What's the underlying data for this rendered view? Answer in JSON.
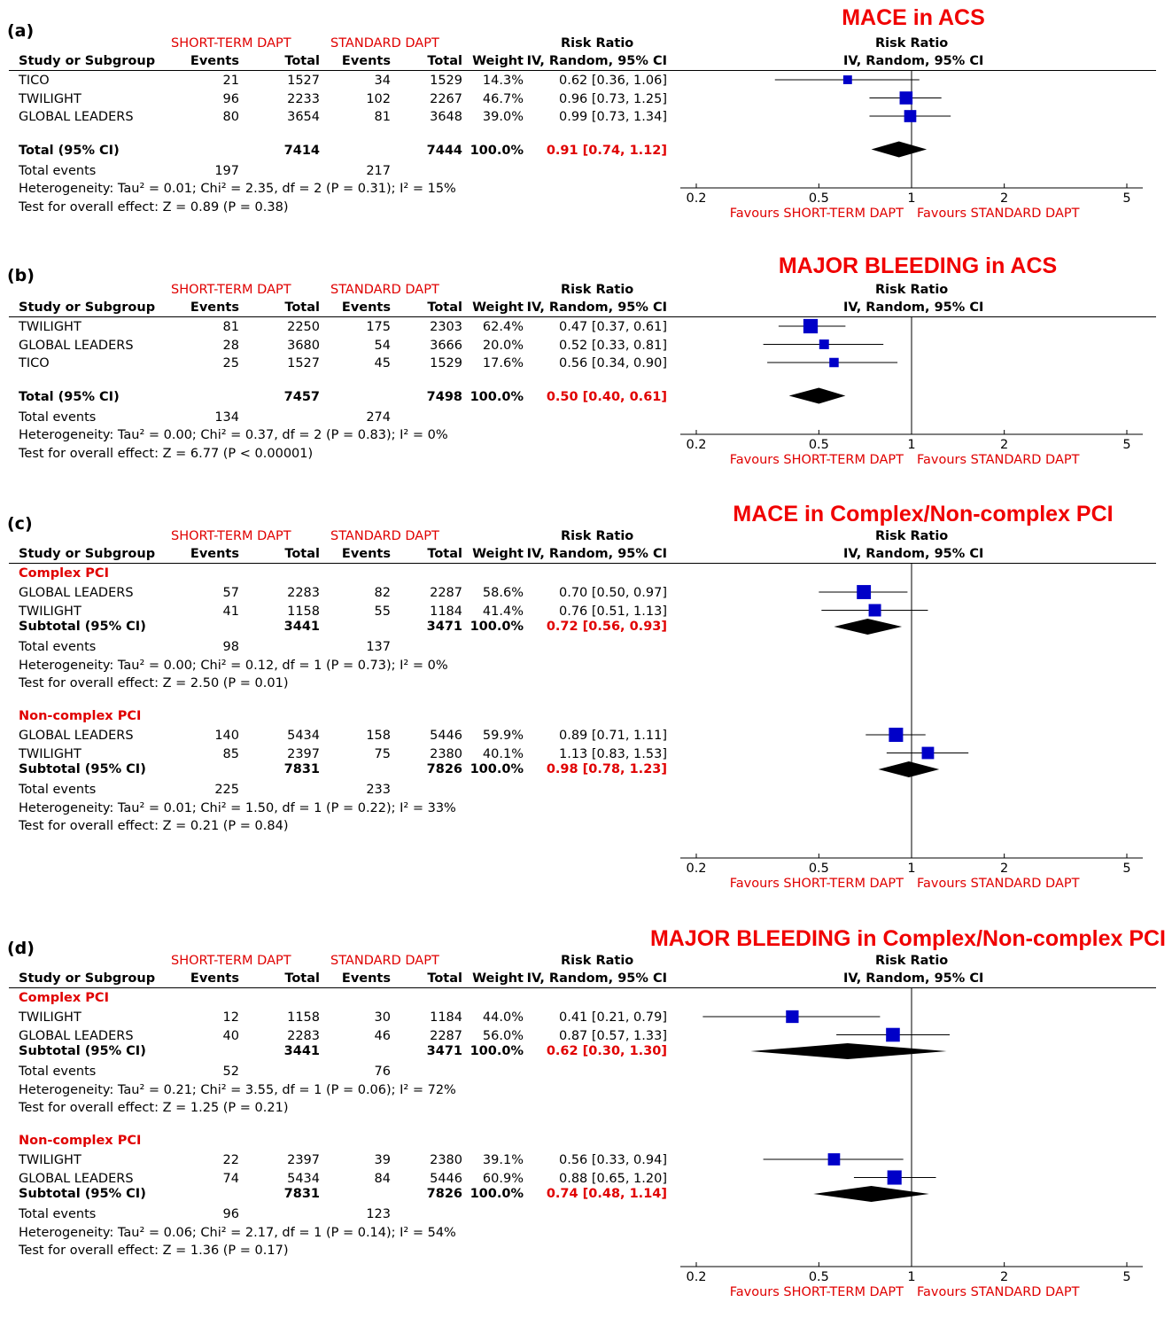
{
  "labels": {
    "group1": "SHORT-TERM DAPT",
    "group2": "STANDARD DAPT",
    "study_col": "Study or Subgroup",
    "events": "Events",
    "total": "Total",
    "weight": "Weight",
    "rr1": "Risk Ratio",
    "rr2": "IV, Random, 95% CI",
    "favours_left": "Favours SHORT-TERM DAPT",
    "favours_right": "Favours STANDARD DAPT",
    "total_events": "Total events"
  },
  "axis_ticks": [
    "0.2",
    "0.5",
    "1",
    "2",
    "5"
  ],
  "chart_data": [
    {
      "type": "forest",
      "letter": "(a)",
      "title": "MACE in ACS",
      "x_scale": "log",
      "xlim": [
        0.2,
        5
      ],
      "null_line": 1,
      "groups": [
        {
          "name": "",
          "studies": [
            {
              "name": "TICO",
              "e1": "21",
              "n1": "1527",
              "e2": "34",
              "n2": "1529",
              "weight": "14.3%",
              "ci": "0.62 [0.36, 1.06]",
              "rr": 0.62,
              "lo": 0.36,
              "hi": 1.06,
              "w": 14.3
            },
            {
              "name": "TWILIGHT",
              "e1": "96",
              "n1": "2233",
              "e2": "102",
              "n2": "2267",
              "weight": "46.7%",
              "ci": "0.96 [0.73, 1.25]",
              "rr": 0.96,
              "lo": 0.73,
              "hi": 1.25,
              "w": 46.7
            },
            {
              "name": "GLOBAL LEADERS",
              "e1": "80",
              "n1": "3654",
              "e2": "81",
              "n2": "3648",
              "weight": "39.0%",
              "ci": "0.99 [0.73, 1.34]",
              "rr": 0.99,
              "lo": 0.73,
              "hi": 1.34,
              "w": 39.0
            }
          ],
          "pooled": {
            "label": "Total (95% CI)",
            "n1": "7414",
            "n2": "7444",
            "weight": "100.0%",
            "ci": "0.91 [0.74, 1.12]",
            "rr": 0.91,
            "lo": 0.74,
            "hi": 1.12
          },
          "total_events1": "197",
          "total_events2": "217",
          "het": "Heterogeneity: Tau² = 0.01; Chi² = 2.35, df = 2 (P = 0.31); I² = 15%",
          "overall": "Test for overall effect: Z = 0.89 (P = 0.38)"
        }
      ]
    },
    {
      "type": "forest",
      "letter": "(b)",
      "title": "MAJOR BLEEDING in ACS",
      "x_scale": "log",
      "xlim": [
        0.2,
        5
      ],
      "null_line": 1,
      "groups": [
        {
          "name": "",
          "studies": [
            {
              "name": "TWILIGHT",
              "e1": "81",
              "n1": "2250",
              "e2": "175",
              "n2": "2303",
              "weight": "62.4%",
              "ci": "0.47 [0.37, 0.61]",
              "rr": 0.47,
              "lo": 0.37,
              "hi": 0.61,
              "w": 62.4
            },
            {
              "name": "GLOBAL LEADERS",
              "e1": "28",
              "n1": "3680",
              "e2": "54",
              "n2": "3666",
              "weight": "20.0%",
              "ci": "0.52 [0.33, 0.81]",
              "rr": 0.52,
              "lo": 0.33,
              "hi": 0.81,
              "w": 20.0
            },
            {
              "name": "TICO",
              "e1": "25",
              "n1": "1527",
              "e2": "45",
              "n2": "1529",
              "weight": "17.6%",
              "ci": "0.56 [0.34, 0.90]",
              "rr": 0.56,
              "lo": 0.34,
              "hi": 0.9,
              "w": 17.6
            }
          ],
          "pooled": {
            "label": "Total (95% CI)",
            "n1": "7457",
            "n2": "7498",
            "weight": "100.0%",
            "ci": "0.50 [0.40, 0.61]",
            "rr": 0.5,
            "lo": 0.4,
            "hi": 0.61
          },
          "total_events1": "134",
          "total_events2": "274",
          "het": "Heterogeneity: Tau² = 0.00; Chi² = 0.37, df = 2 (P = 0.83); I² = 0%",
          "overall": "Test for overall effect: Z = 6.77 (P < 0.00001)"
        }
      ]
    },
    {
      "type": "forest",
      "letter": "(c)",
      "title": "MACE in Complex/Non-complex PCI",
      "x_scale": "log",
      "xlim": [
        0.2,
        5
      ],
      "null_line": 1,
      "groups": [
        {
          "name": "Complex PCI",
          "studies": [
            {
              "name": "GLOBAL LEADERS",
              "e1": "57",
              "n1": "2283",
              "e2": "82",
              "n2": "2287",
              "weight": "58.6%",
              "ci": "0.70 [0.50, 0.97]",
              "rr": 0.7,
              "lo": 0.5,
              "hi": 0.97,
              "w": 58.6
            },
            {
              "name": "TWILIGHT",
              "e1": "41",
              "n1": "1158",
              "e2": "55",
              "n2": "1184",
              "weight": "41.4%",
              "ci": "0.76 [0.51, 1.13]",
              "rr": 0.76,
              "lo": 0.51,
              "hi": 1.13,
              "w": 41.4
            }
          ],
          "pooled": {
            "label": "Subtotal (95% CI)",
            "n1": "3441",
            "n2": "3471",
            "weight": "100.0%",
            "ci": "0.72 [0.56, 0.93]",
            "rr": 0.72,
            "lo": 0.56,
            "hi": 0.93
          },
          "total_events1": "98",
          "total_events2": "137",
          "het": "Heterogeneity: Tau² = 0.00; Chi² = 0.12, df = 1 (P = 0.73); I² = 0%",
          "overall": "Test for overall effect: Z = 2.50 (P = 0.01)"
        },
        {
          "name": "Non-complex PCI",
          "studies": [
            {
              "name": "GLOBAL LEADERS",
              "e1": "140",
              "n1": "5434",
              "e2": "158",
              "n2": "5446",
              "weight": "59.9%",
              "ci": "0.89 [0.71, 1.11]",
              "rr": 0.89,
              "lo": 0.71,
              "hi": 1.11,
              "w": 59.9
            },
            {
              "name": "TWILIGHT",
              "e1": "85",
              "n1": "2397",
              "e2": "75",
              "n2": "2380",
              "weight": "40.1%",
              "ci": "1.13 [0.83, 1.53]",
              "rr": 1.13,
              "lo": 0.83,
              "hi": 1.53,
              "w": 40.1
            }
          ],
          "pooled": {
            "label": "Subtotal (95% CI)",
            "n1": "7831",
            "n2": "7826",
            "weight": "100.0%",
            "ci": "0.98 [0.78, 1.23]",
            "rr": 0.98,
            "lo": 0.78,
            "hi": 1.23
          },
          "total_events1": "225",
          "total_events2": "233",
          "het": "Heterogeneity: Tau² = 0.01; Chi² = 1.50, df = 1 (P = 0.22); I² = 33%",
          "overall": "Test for overall effect: Z = 0.21 (P = 0.84)"
        }
      ]
    },
    {
      "type": "forest",
      "letter": "(d)",
      "title": "MAJOR BLEEDING in Complex/Non-complex PCI",
      "x_scale": "log",
      "xlim": [
        0.2,
        5
      ],
      "null_line": 1,
      "groups": [
        {
          "name": "Complex PCI",
          "studies": [
            {
              "name": "TWILIGHT",
              "e1": "12",
              "n1": "1158",
              "e2": "30",
              "n2": "1184",
              "weight": "44.0%",
              "ci": "0.41 [0.21, 0.79]",
              "rr": 0.41,
              "lo": 0.21,
              "hi": 0.79,
              "w": 44.0
            },
            {
              "name": "GLOBAL LEADERS",
              "e1": "40",
              "n1": "2283",
              "e2": "46",
              "n2": "2287",
              "weight": "56.0%",
              "ci": "0.87 [0.57, 1.33]",
              "rr": 0.87,
              "lo": 0.57,
              "hi": 1.33,
              "w": 56.0
            }
          ],
          "pooled": {
            "label": "Subtotal (95% CI)",
            "n1": "3441",
            "n2": "3471",
            "weight": "100.0%",
            "ci": "0.62 [0.30, 1.30]",
            "rr": 0.62,
            "lo": 0.3,
            "hi": 1.3
          },
          "total_events1": "52",
          "total_events2": "76",
          "het": "Heterogeneity: Tau² = 0.21; Chi² = 3.55, df = 1 (P = 0.06); I² = 72%",
          "overall": "Test for overall effect: Z = 1.25 (P = 0.21)"
        },
        {
          "name": "Non-complex PCI",
          "studies": [
            {
              "name": "TWILIGHT",
              "e1": "22",
              "n1": "2397",
              "e2": "39",
              "n2": "2380",
              "weight": "39.1%",
              "ci": "0.56 [0.33, 0.94]",
              "rr": 0.56,
              "lo": 0.33,
              "hi": 0.94,
              "w": 39.1
            },
            {
              "name": "GLOBAL LEADERS",
              "e1": "74",
              "n1": "5434",
              "e2": "84",
              "n2": "5446",
              "weight": "60.9%",
              "ci": "0.88 [0.65, 1.20]",
              "rr": 0.88,
              "lo": 0.65,
              "hi": 1.2,
              "w": 60.9
            }
          ],
          "pooled": {
            "label": "Subtotal (95% CI)",
            "n1": "7831",
            "n2": "7826",
            "weight": "100.0%",
            "ci": "0.74 [0.48, 1.14]",
            "rr": 0.74,
            "lo": 0.48,
            "hi": 1.14
          },
          "total_events1": "96",
          "total_events2": "123",
          "het": "Heterogeneity: Tau² = 0.06; Chi² = 2.17, df = 1 (P = 0.14); I² = 54%",
          "overall": "Test for overall effect: Z = 1.36 (P = 0.17)"
        }
      ]
    }
  ]
}
